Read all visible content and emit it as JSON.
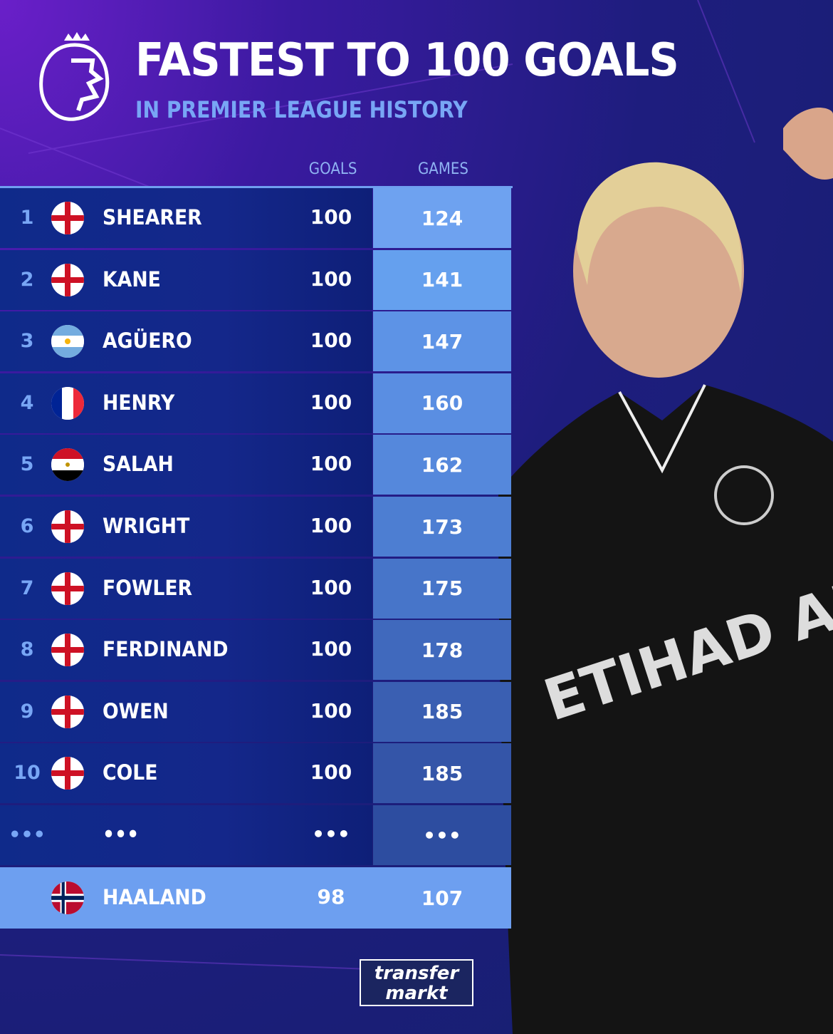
{
  "header": {
    "title": "FASTEST TO 100 GOALS",
    "subtitle": "IN PREMIER LEAGUE HISTORY",
    "logo": "premier-league-lion-logo"
  },
  "columns": {
    "goals": "GOALS",
    "games": "GAMES"
  },
  "rows": [
    {
      "rank": "1",
      "flag": "england",
      "name": "SHEARER",
      "goals": "100",
      "games": "124"
    },
    {
      "rank": "2",
      "flag": "england",
      "name": "KANE",
      "goals": "100",
      "games": "141"
    },
    {
      "rank": "3",
      "flag": "argentina",
      "name": "AGÜERO",
      "goals": "100",
      "games": "147"
    },
    {
      "rank": "4",
      "flag": "france",
      "name": "HENRY",
      "goals": "100",
      "games": "160"
    },
    {
      "rank": "5",
      "flag": "egypt",
      "name": "SALAH",
      "goals": "100",
      "games": "162"
    },
    {
      "rank": "6",
      "flag": "england",
      "name": "WRIGHT",
      "goals": "100",
      "games": "173"
    },
    {
      "rank": "7",
      "flag": "england",
      "name": "FOWLER",
      "goals": "100",
      "games": "175"
    },
    {
      "rank": "8",
      "flag": "england",
      "name": "FERDINAND",
      "goals": "100",
      "games": "178"
    },
    {
      "rank": "9",
      "flag": "england",
      "name": "OWEN",
      "goals": "100",
      "games": "185"
    },
    {
      "rank": "10",
      "flag": "england",
      "name": "COLE",
      "goals": "100",
      "games": "185"
    }
  ],
  "ellipsis": {
    "rank": "•••",
    "name": "•••",
    "goals": "•••",
    "games": "•••"
  },
  "highlight": {
    "flag": "norway",
    "name": "HAALAND",
    "goals": "98",
    "games": "107"
  },
  "photo": {
    "sponsor": "ETIHAD AIRWAYS"
  },
  "footer": {
    "logo_line1": "transfer",
    "logo_line2": "markt"
  },
  "colors": {
    "games_top": "#6aa0f0",
    "games_bottom": "#3253a8",
    "highlight": "#6d9ff0",
    "accent": "#78a6f5"
  }
}
